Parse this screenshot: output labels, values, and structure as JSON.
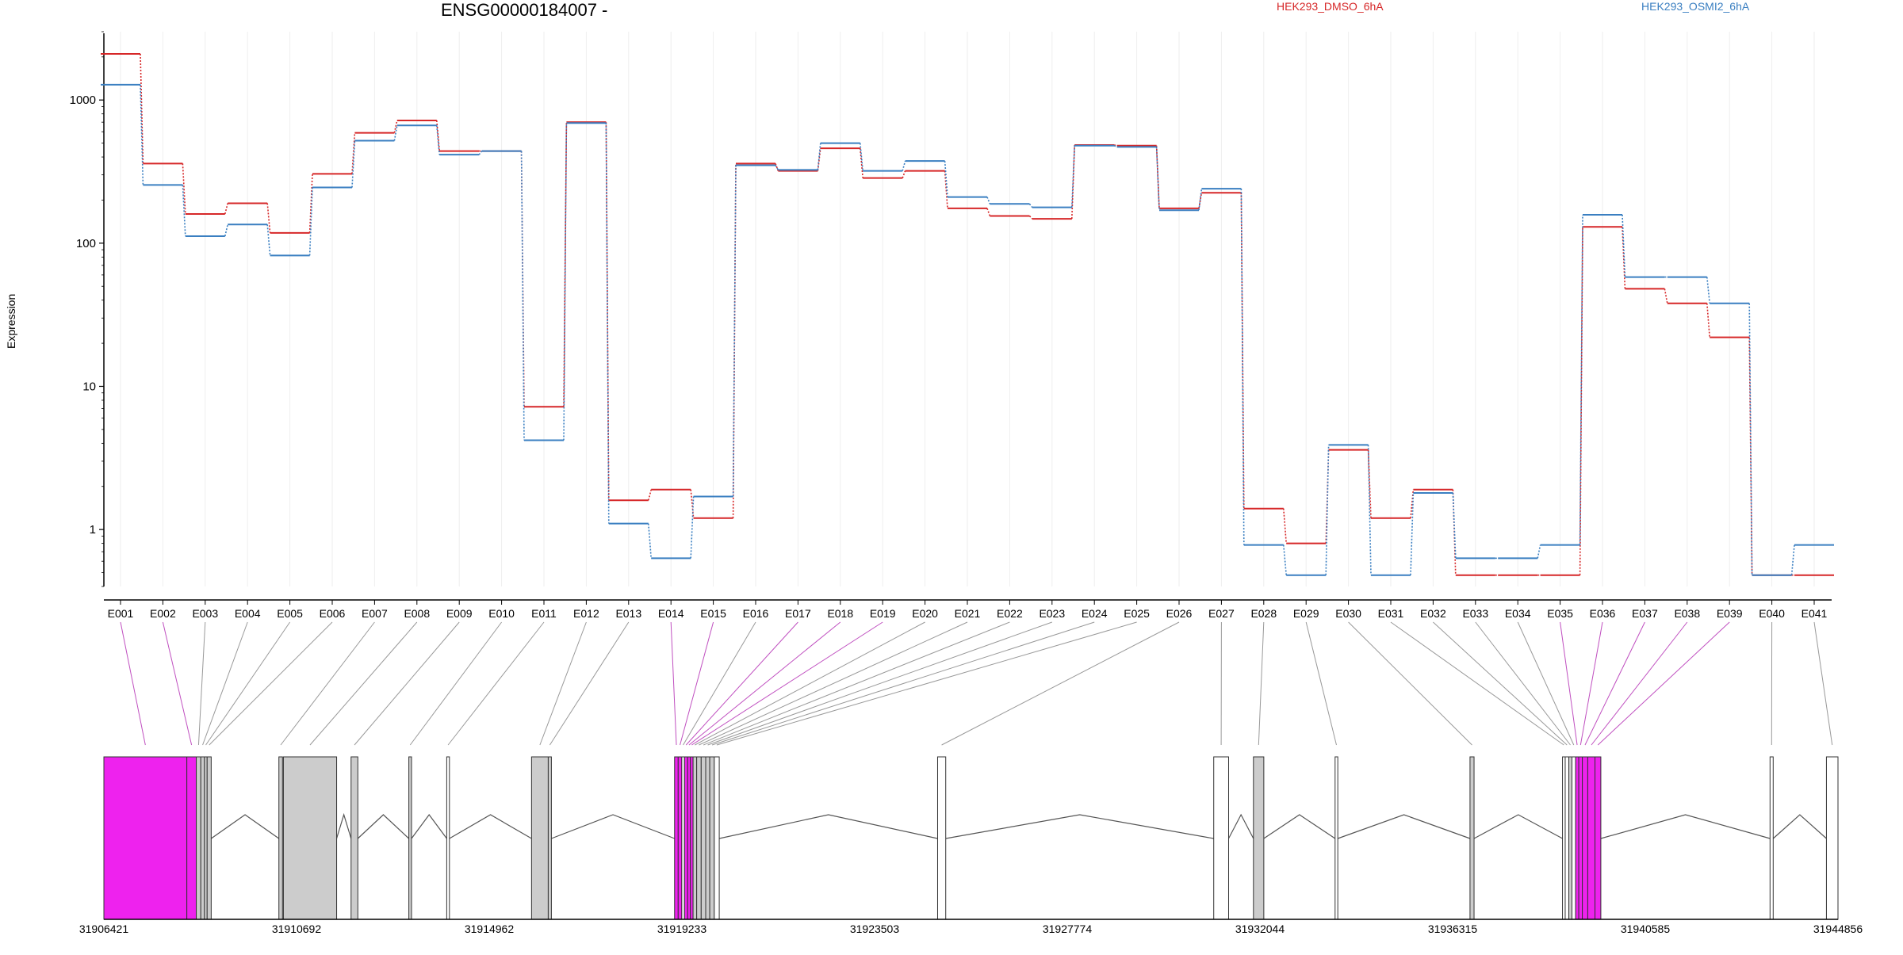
{
  "chart_data": {
    "type": "line",
    "title": "ENSG00000184007 -",
    "ylabel": "Expression",
    "yscale": "log",
    "ylim": [
      0.4,
      3000
    ],
    "yticks": [
      1,
      10,
      100,
      1000
    ],
    "grid": true,
    "legend_position": "top-right",
    "categories": [
      "E001",
      "E002",
      "E003",
      "E004",
      "E005",
      "E006",
      "E007",
      "E008",
      "E009",
      "E010",
      "E011",
      "E012",
      "E013",
      "E014",
      "E015",
      "E016",
      "E017",
      "E018",
      "E019",
      "E020",
      "E021",
      "E022",
      "E023",
      "E024",
      "E025",
      "E026",
      "E027",
      "E028",
      "E029",
      "E030",
      "E031",
      "E032",
      "E033",
      "E034",
      "E035",
      "E036",
      "E037",
      "E038",
      "E039",
      "E040",
      "E041"
    ],
    "series": [
      {
        "name": "HEK293_DMSO_6hA",
        "color": "#d62728",
        "values": [
          2100,
          360,
          160,
          190,
          118,
          305,
          590,
          720,
          440,
          440,
          7.2,
          700,
          1.6,
          1.9,
          1.2,
          360,
          320,
          460,
          285,
          320,
          175,
          155,
          148,
          485,
          480,
          175,
          225,
          1.4,
          0.8,
          3.6,
          1.2,
          1.9,
          0.48,
          0.48,
          0.48,
          130,
          48,
          38,
          22,
          0.48,
          0.48
        ]
      },
      {
        "name": "HEK293_OSMI2_6hA",
        "color": "#3a7fc1",
        "values": [
          1280,
          255,
          112,
          135,
          82,
          245,
          520,
          665,
          415,
          440,
          4.2,
          690,
          1.1,
          0.63,
          1.7,
          350,
          325,
          500,
          320,
          375,
          210,
          188,
          178,
          480,
          470,
          170,
          240,
          0.78,
          0.48,
          3.9,
          0.48,
          1.8,
          0.63,
          0.63,
          0.78,
          158,
          58,
          58,
          38,
          0.48,
          0.78
        ]
      }
    ],
    "gene_model": {
      "coordinates": [
        "31906421",
        "31910692",
        "31914962",
        "31919233",
        "31923503",
        "31927774",
        "31932044",
        "31936315",
        "31940585",
        "31944856"
      ],
      "range": [
        31906421,
        31944856
      ],
      "colors": {
        "significant": "#ee22ee",
        "normal": "#cccccc",
        "untested": "#ffffff"
      },
      "exons": [
        {
          "id": "E001",
          "start": 31906421,
          "end": 31908260,
          "status": "significant"
        },
        {
          "id": "E002",
          "start": 31908260,
          "end": 31908470,
          "status": "significant"
        },
        {
          "id": "E003",
          "start": 31908470,
          "end": 31908570,
          "status": "normal"
        },
        {
          "id": "E004",
          "start": 31908570,
          "end": 31908650,
          "status": "normal"
        },
        {
          "id": "E005",
          "start": 31908650,
          "end": 31908710,
          "status": "normal"
        },
        {
          "id": "E006",
          "start": 31908710,
          "end": 31908800,
          "status": "normal"
        },
        {
          "id": "E007",
          "start": 31910300,
          "end": 31910380,
          "status": "normal"
        },
        {
          "id": "E008",
          "start": 31910400,
          "end": 31911580,
          "status": "normal"
        },
        {
          "id": "E009",
          "start": 31911900,
          "end": 31912050,
          "status": "normal"
        },
        {
          "id": "E010",
          "start": 31913180,
          "end": 31913240,
          "status": "normal"
        },
        {
          "id": "E011",
          "start": 31914020,
          "end": 31914080,
          "status": "untested"
        },
        {
          "id": "E012",
          "start": 31915900,
          "end": 31916270,
          "status": "normal"
        },
        {
          "id": "E013",
          "start": 31916270,
          "end": 31916340,
          "status": "normal"
        },
        {
          "id": "E014",
          "start": 31919070,
          "end": 31919150,
          "status": "significant"
        },
        {
          "id": "E015",
          "start": 31919150,
          "end": 31919230,
          "status": "significant"
        },
        {
          "id": "E016",
          "start": 31919230,
          "end": 31919290,
          "status": "untested"
        },
        {
          "id": "E017",
          "start": 31919290,
          "end": 31919360,
          "status": "significant"
        },
        {
          "id": "E018",
          "start": 31919360,
          "end": 31919420,
          "status": "significant"
        },
        {
          "id": "E019",
          "start": 31919420,
          "end": 31919480,
          "status": "significant"
        },
        {
          "id": "E020",
          "start": 31919480,
          "end": 31919560,
          "status": "normal"
        },
        {
          "id": "E021",
          "start": 31919560,
          "end": 31919660,
          "status": "normal"
        },
        {
          "id": "E022",
          "start": 31919660,
          "end": 31919760,
          "status": "normal"
        },
        {
          "id": "E023",
          "start": 31919760,
          "end": 31919850,
          "status": "normal"
        },
        {
          "id": "E024",
          "start": 31919850,
          "end": 31919950,
          "status": "normal"
        },
        {
          "id": "E025",
          "start": 31919950,
          "end": 31920060,
          "status": "untested"
        },
        {
          "id": "E026",
          "start": 31924900,
          "end": 31925080,
          "status": "untested"
        },
        {
          "id": "E027",
          "start": 31931020,
          "end": 31931350,
          "status": "untested"
        },
        {
          "id": "E028",
          "start": 31931900,
          "end": 31932130,
          "status": "normal"
        },
        {
          "id": "E029",
          "start": 31933710,
          "end": 31933770,
          "status": "untested"
        },
        {
          "id": "E030",
          "start": 31936700,
          "end": 31936790,
          "status": "normal"
        },
        {
          "id": "E031",
          "start": 31938750,
          "end": 31938810,
          "status": "untested"
        },
        {
          "id": "E032",
          "start": 31938810,
          "end": 31938890,
          "status": "untested"
        },
        {
          "id": "E033",
          "start": 31938890,
          "end": 31938960,
          "status": "normal"
        },
        {
          "id": "E034",
          "start": 31938960,
          "end": 31939040,
          "status": "untested"
        },
        {
          "id": "E035",
          "start": 31939040,
          "end": 31939110,
          "status": "significant"
        },
        {
          "id": "E036",
          "start": 31939110,
          "end": 31939190,
          "status": "significant"
        },
        {
          "id": "E037",
          "start": 31939190,
          "end": 31939310,
          "status": "significant"
        },
        {
          "id": "E038",
          "start": 31939310,
          "end": 31939470,
          "status": "significant"
        },
        {
          "id": "E039",
          "start": 31939470,
          "end": 31939600,
          "status": "significant"
        },
        {
          "id": "E040",
          "start": 31943350,
          "end": 31943420,
          "status": "untested"
        },
        {
          "id": "E041",
          "start": 31944600,
          "end": 31944856,
          "status": "untested"
        }
      ]
    }
  }
}
